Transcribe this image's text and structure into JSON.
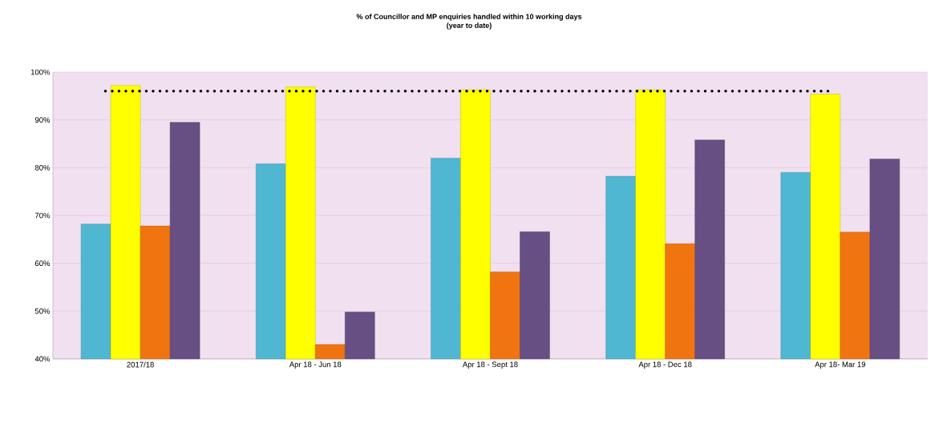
{
  "chart_data": {
    "type": "bar",
    "title": "% of Councillor and MP enquiries handled within 10 working days",
    "subtitle": "(year to date)",
    "categories": [
      "2017/18",
      "Apr 18 - Jun 18",
      "Apr 18 - Sept 18",
      "Apr 18 - Dec 18",
      "Apr 18- Mar 19"
    ],
    "series": [
      {
        "color": "#4fb7d2",
        "values": [
          68.2,
          80.8,
          82.0,
          78.2,
          79.0
        ]
      },
      {
        "color": "#ffff00",
        "values": [
          97.2,
          96.9,
          96.3,
          96.3,
          95.4
        ]
      },
      {
        "color": "#f07510",
        "values": [
          67.8,
          43.0,
          58.2,
          64.1,
          66.5
        ]
      },
      {
        "color": "#674f84",
        "values": [
          89.5,
          49.8,
          66.6,
          85.8,
          81.8
        ]
      }
    ],
    "ylim": [
      40,
      100
    ],
    "yticks": [
      {
        "value": 40,
        "label": "40%"
      },
      {
        "value": 50,
        "label": "50%"
      },
      {
        "value": 60,
        "label": "60%"
      },
      {
        "value": 70,
        "label": "70%"
      },
      {
        "value": 80,
        "label": "80%"
      },
      {
        "value": 90,
        "label": "90%"
      },
      {
        "value": 100,
        "label": "100%"
      }
    ],
    "grid": "y",
    "ref_lines": [
      {
        "axis": "y",
        "value": 96,
        "color": "#000000",
        "line_style": "dotted"
      }
    ]
  }
}
